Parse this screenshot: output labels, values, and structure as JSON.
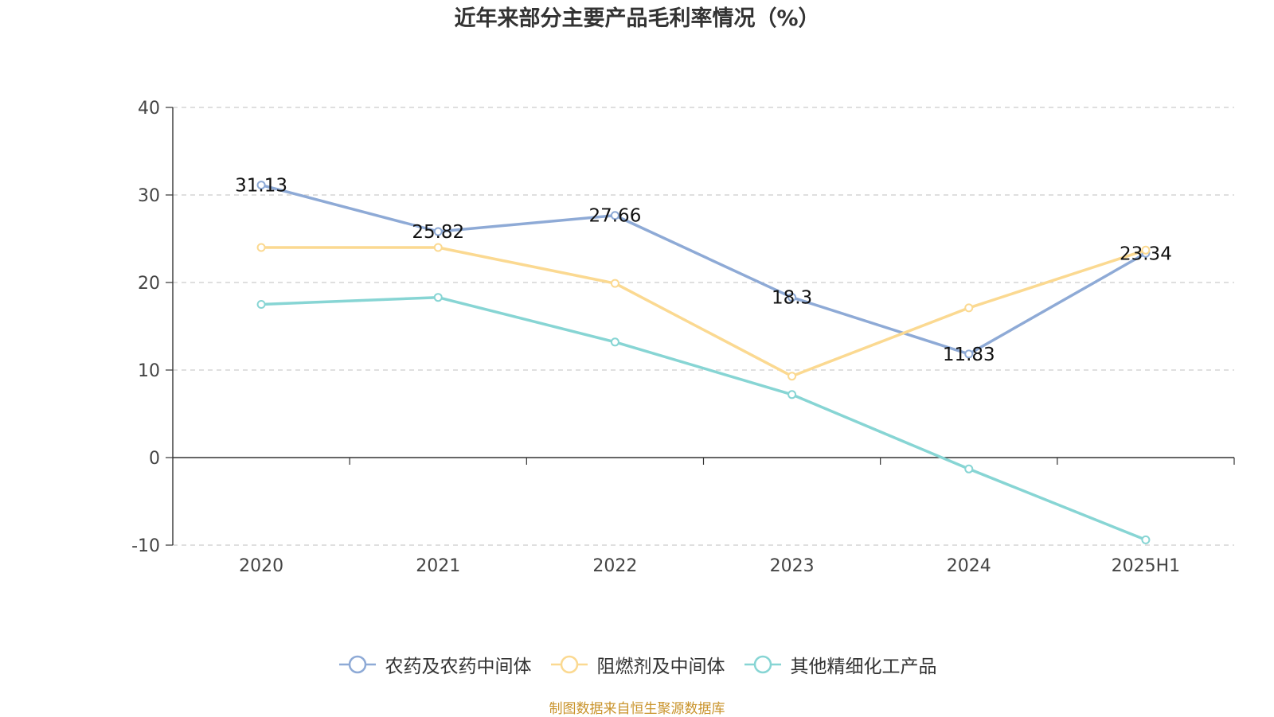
{
  "title": "近年来部分主要产品毛利率情况（%）",
  "source": "制图数据来自恒生聚源数据库",
  "chart_data": {
    "type": "line",
    "title": "近年来部分主要产品毛利率情况（%）",
    "categories": [
      "2020",
      "2021",
      "2022",
      "2023",
      "2024",
      "2025H1"
    ],
    "ylim": [
      -10,
      40
    ],
    "yticks": [
      -10,
      0,
      10,
      20,
      30,
      40
    ],
    "grid": true,
    "legend_position": "bottom",
    "series": [
      {
        "name": "农药及农药中间体",
        "color": "#8eaad6",
        "values": [
          31.13,
          25.82,
          27.66,
          18.3,
          11.83,
          23.34
        ],
        "labels": [
          "31.13",
          "25.82",
          "27.66",
          "18.3",
          "11.83",
          "23.34"
        ]
      },
      {
        "name": "阻燃剂及中间体",
        "color": "#fbd991",
        "values": [
          24.0,
          24.0,
          19.9,
          9.3,
          17.1,
          23.7
        ],
        "labels": []
      },
      {
        "name": "其他精细化工产品",
        "color": "#87d5d4",
        "values": [
          17.5,
          18.3,
          13.2,
          7.2,
          -1.3,
          -9.4
        ],
        "labels": []
      }
    ]
  }
}
